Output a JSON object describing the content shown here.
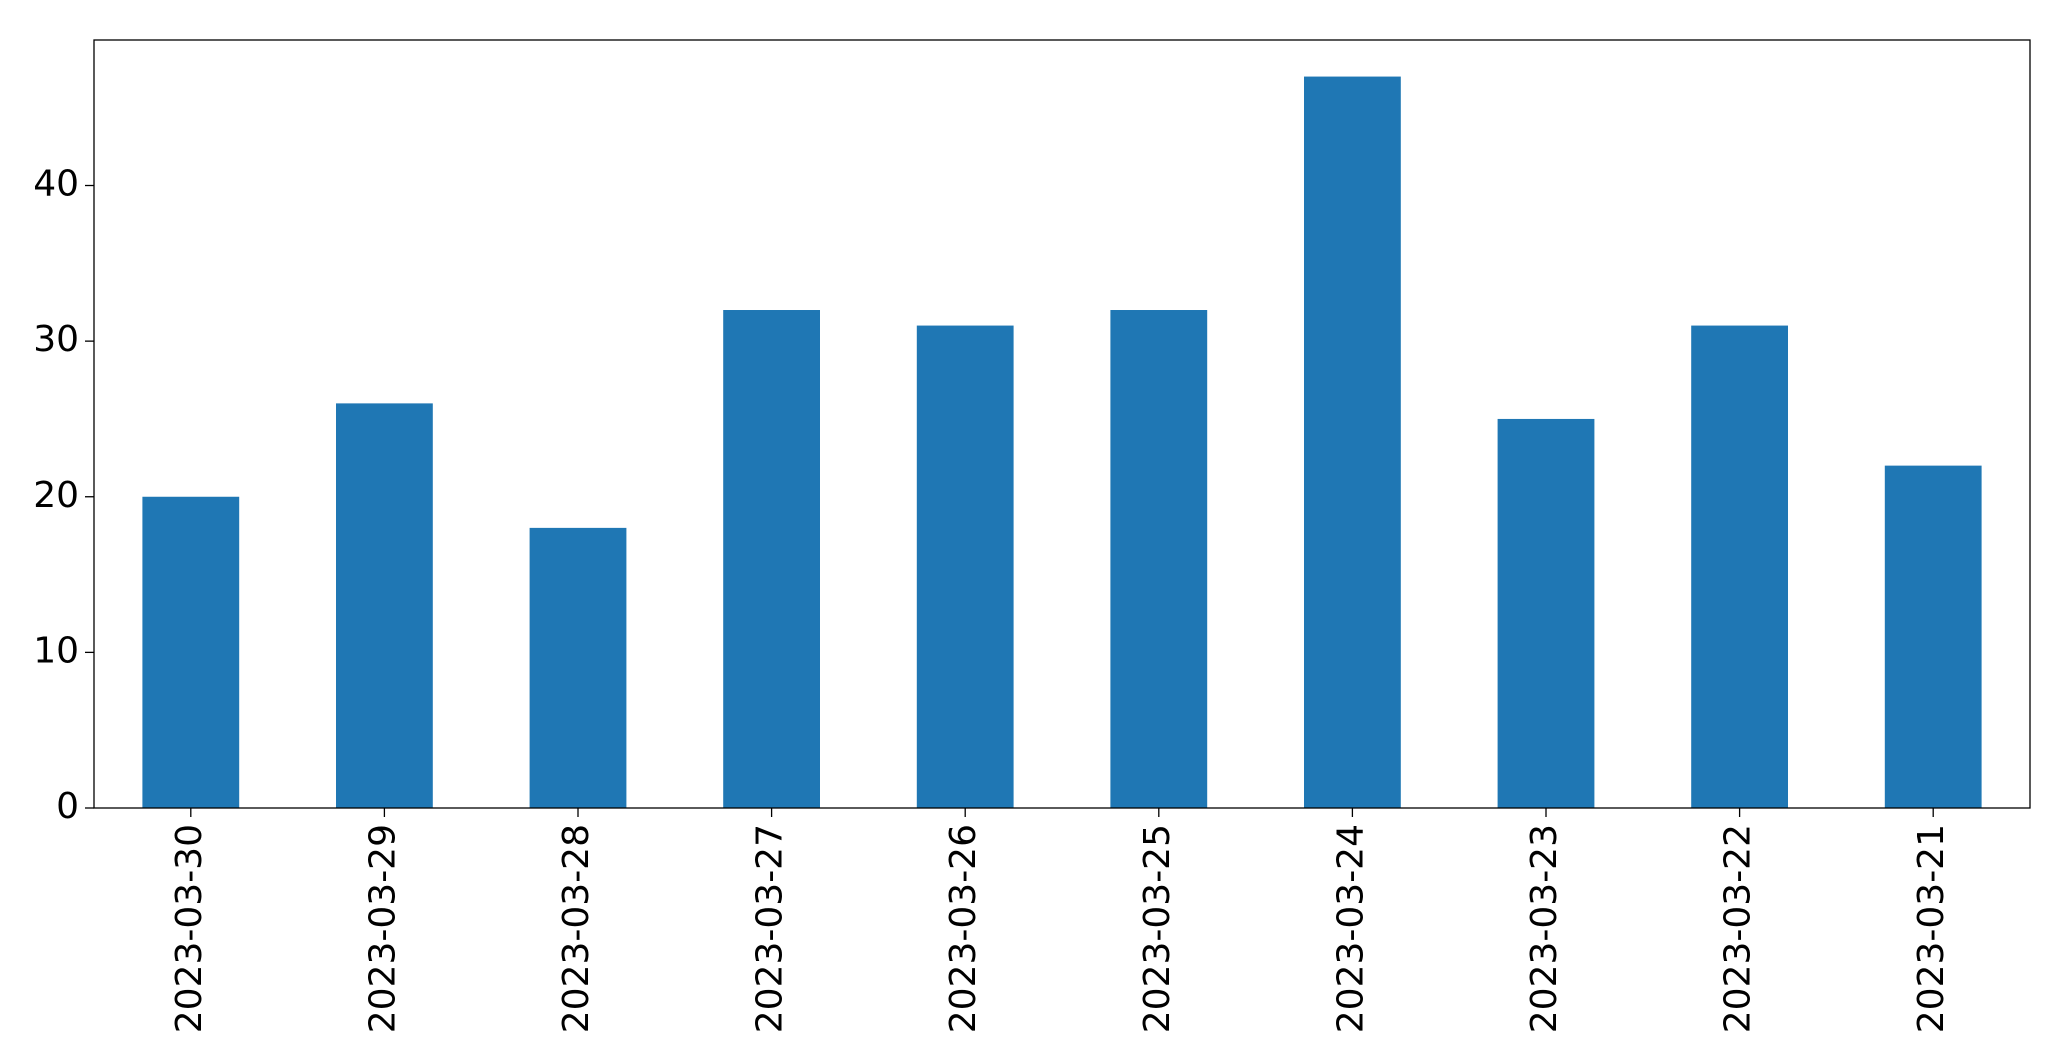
{
  "chart_data": {
    "type": "bar",
    "categories": [
      "2023-03-30",
      "2023-03-29",
      "2023-03-28",
      "2023-03-27",
      "2023-03-26",
      "2023-03-25",
      "2023-03-24",
      "2023-03-23",
      "2023-03-22",
      "2023-03-21"
    ],
    "values": [
      20,
      26,
      18,
      32,
      31,
      32,
      47,
      25,
      31,
      22
    ],
    "color": "#1f77b4",
    "ylim": [
      0,
      49.35
    ],
    "yticks": [
      0,
      10,
      20,
      30,
      40
    ],
    "grid": false
  }
}
